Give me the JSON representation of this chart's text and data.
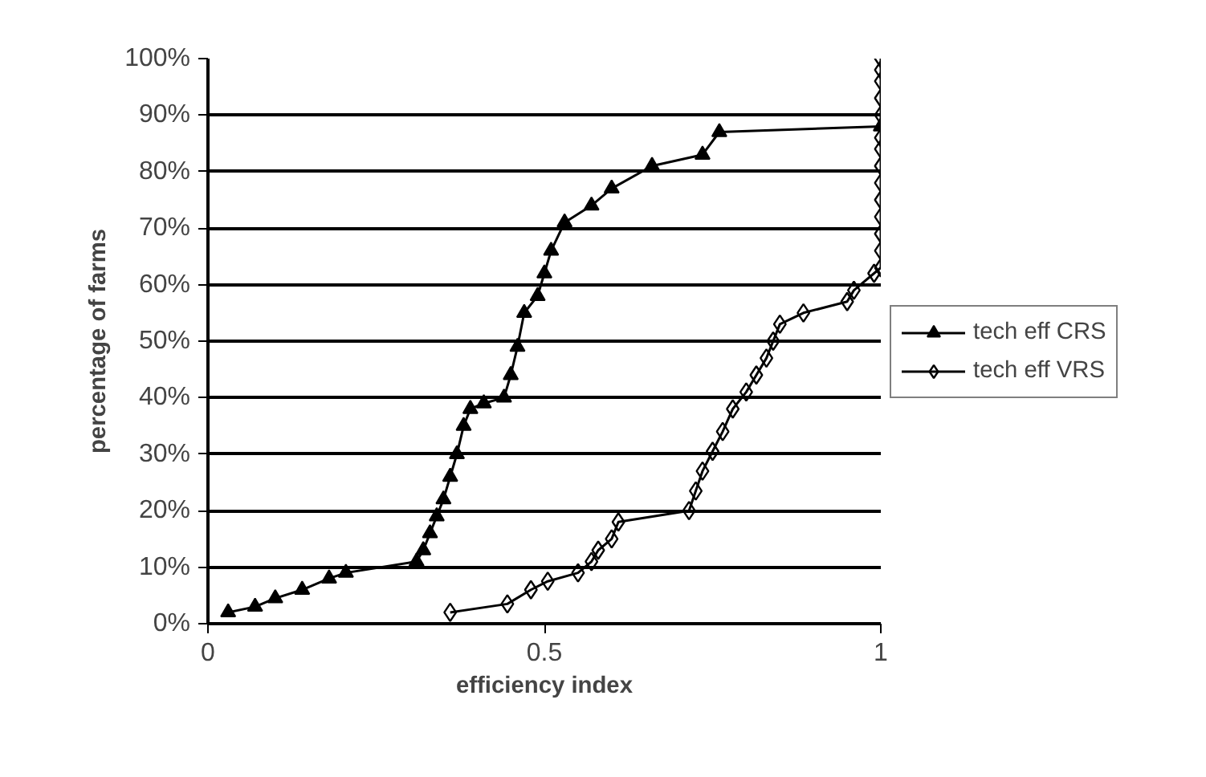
{
  "chart_data": {
    "type": "line",
    "xlabel": "efficiency index",
    "ylabel": "percentage of farms",
    "xlim": [
      0,
      1
    ],
    "xticks": [
      0,
      0.5,
      1
    ],
    "ylim": [
      0,
      100
    ],
    "yticks": [
      {
        "value": 0,
        "label": "0%"
      },
      {
        "value": 10,
        "label": "10%"
      },
      {
        "value": 20,
        "label": "20%"
      },
      {
        "value": 30,
        "label": "30%"
      },
      {
        "value": 40,
        "label": "40%"
      },
      {
        "value": 50,
        "label": "50%"
      },
      {
        "value": 60,
        "label": "60%"
      },
      {
        "value": 70,
        "label": "70%"
      },
      {
        "value": 80,
        "label": "80%"
      },
      {
        "value": 90,
        "label": "90%"
      },
      {
        "value": 100,
        "label": "100%"
      }
    ],
    "grid": "y",
    "legend": "right",
    "series": [
      {
        "name": "tech eff CRS",
        "color": "#000000",
        "marker": "triangle",
        "x": [
          0.03,
          0.07,
          0.1,
          0.14,
          0.18,
          0.205,
          0.31,
          0.32,
          0.33,
          0.34,
          0.35,
          0.36,
          0.37,
          0.38,
          0.39,
          0.41,
          0.44,
          0.45,
          0.46,
          0.47,
          0.49,
          0.5,
          0.51,
          0.53,
          0.57,
          0.6,
          0.66,
          0.735,
          0.76,
          1.0
        ],
        "values": [
          2,
          3,
          4.5,
          6,
          8,
          9,
          11,
          13,
          16,
          19,
          22,
          26,
          30,
          35,
          38,
          39,
          40,
          44,
          49,
          55,
          58,
          62,
          66,
          71,
          74,
          77,
          81,
          83,
          87,
          88
        ]
      },
      {
        "name": "tech eff VRS",
        "color": "#000000",
        "marker": "diamond",
        "x": [
          0.36,
          0.445,
          0.48,
          0.505,
          0.55,
          0.57,
          0.58,
          0.6,
          0.61,
          0.715,
          0.725,
          0.735,
          0.75,
          0.765,
          0.78,
          0.8,
          0.815,
          0.83,
          0.84,
          0.85,
          0.885,
          0.95,
          0.96,
          0.99,
          1.0,
          1.0,
          1.0,
          1.0,
          1.0,
          1.0,
          1.0,
          1.0,
          1.0,
          1.0,
          1.0,
          1.0,
          1.0,
          1.0
        ],
        "values": [
          2,
          3.5,
          6,
          7.5,
          9,
          11,
          13,
          15,
          18,
          20,
          23.5,
          27,
          30.5,
          34,
          38,
          41,
          44,
          47,
          50,
          53,
          55,
          57,
          59,
          62,
          63,
          66,
          69,
          72,
          75,
          78,
          81,
          84,
          86,
          90,
          93,
          96,
          98,
          100
        ]
      }
    ]
  }
}
